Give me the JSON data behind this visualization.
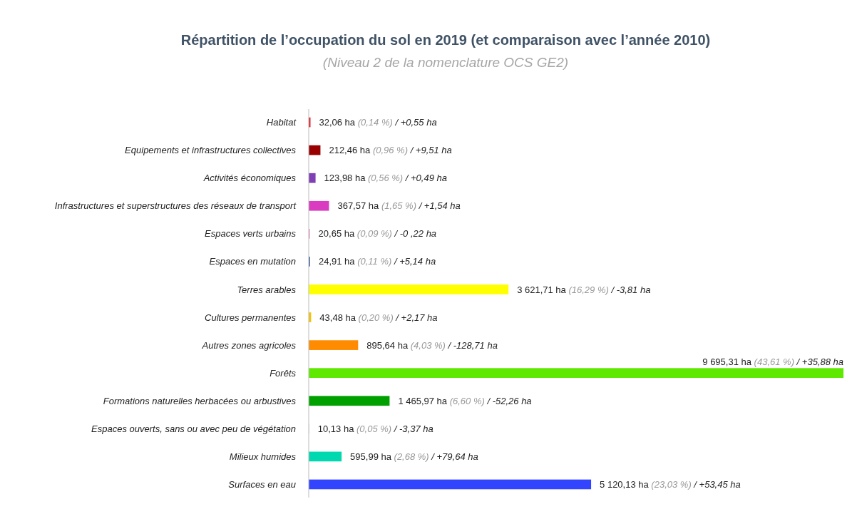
{
  "chart_data": {
    "type": "bar",
    "orientation": "horizontal",
    "title": "Répartition de l’occupation du sol en 2019 (et comparaison avec l’année 2010)",
    "subtitle": "(Niveau 2 de la nomenclature OCS GE2)",
    "categories": [
      "Habitat",
      "Equipements et infrastructures collectives",
      "Activités économiques",
      "Infrastructures et superstructures des réseaux de transport",
      "Espaces verts urbains",
      "Espaces en mutation",
      "Terres arables",
      "Cultures permanentes",
      "Autres zones agricoles",
      "Forêts",
      "Formations naturelles herbacées ou arbustives",
      "Espaces ouverts, sans ou avec peu de végétation",
      "Milieux humides",
      "Surfaces en eau"
    ],
    "values": [
      32.06,
      212.46,
      123.98,
      367.57,
      20.65,
      24.91,
      3621.71,
      43.48,
      895.64,
      9695.31,
      1465.97,
      10.13,
      595.99,
      5120.13
    ],
    "colors": [
      "#e0202a",
      "#990000",
      "#7f3fb5",
      "#d93cc0",
      "#f08cc8",
      "#4f6fb0",
      "#ffff00",
      "#f5c400",
      "#ff8c00",
      "#5fe800",
      "#00a000",
      "#d0d0d0",
      "#00d8b0",
      "#3344ff"
    ],
    "value_labels": [
      "32,06 ha (0,14 %) / +0,55 ha",
      "212,46 ha (0,96 %) / +9,51 ha",
      "123,98 ha (0,56 %) / +0,49 ha",
      "367,57 ha (1,65 %) / +1,54 ha",
      "20,65 ha (0,09 %) / -0 ,22 ha",
      "24,91 ha (0,11 %) / +5,14 ha",
      "3 621,71 ha (16,29 %) / -3,81 ha",
      "43,48 ha (0,20 %) / +2,17 ha",
      "895,64 ha (4,03 %) / -128,71 ha",
      "9 695,31 ha (43,61 %) / +35,88 ha",
      "1 465,97 ha (6,60 %) / -52,26 ha",
      "10,13 ha (0,05 %) / -3,37 ha",
      "595,99 ha (2,68 %) / +79,64 ha",
      "5 120,13 ha (23,03 %) / +53,45 ha"
    ]
  }
}
